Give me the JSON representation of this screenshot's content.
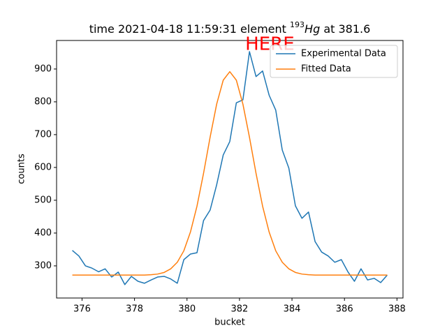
{
  "chart_data": {
    "type": "line",
    "title": {
      "prefix": "time 2021-04-18 11:59:31 element",
      "mass": "193",
      "element": "Hg",
      "suffix": "at 381.6"
    },
    "annotation": "HERE",
    "xlabel": "bucket",
    "ylabel": "counts",
    "x": [
      375.63,
      375.88,
      376.13,
      376.38,
      376.63,
      376.88,
      377.13,
      377.38,
      377.63,
      377.88,
      378.13,
      378.38,
      378.63,
      378.88,
      379.13,
      379.38,
      379.63,
      379.88,
      380.13,
      380.38,
      380.63,
      380.88,
      381.13,
      381.38,
      381.63,
      381.88,
      382.13,
      382.38,
      382.63,
      382.88,
      383.13,
      383.38,
      383.63,
      383.88,
      384.13,
      384.38,
      384.63,
      384.88,
      385.13,
      385.38,
      385.63,
      385.88,
      386.13,
      386.38,
      386.63,
      386.88,
      387.13,
      387.38,
      387.63
    ],
    "series": [
      {
        "name": "Experimental Data",
        "color": "#1f77b4",
        "values": [
          347,
          330,
          300,
          293,
          282,
          291,
          266,
          281,
          243,
          268,
          253,
          247,
          257,
          266,
          268,
          260,
          247,
          319,
          336,
          340,
          438,
          470,
          547,
          638,
          679,
          797,
          806,
          953,
          877,
          894,
          820,
          775,
          653,
          598,
          483,
          445,
          464,
          374,
          342,
          330,
          311,
          319,
          282,
          253,
          291,
          257,
          262,
          249,
          272
        ]
      },
      {
        "name": "Fitted Data",
        "color": "#ff7f0e",
        "values": [
          272,
          272,
          272,
          272,
          272,
          272,
          272,
          272,
          272,
          272,
          272,
          272,
          273,
          275,
          280,
          291,
          311,
          346,
          403,
          482,
          582,
          692,
          793,
          866,
          892,
          866,
          793,
          692,
          582,
          482,
          403,
          346,
          311,
          291,
          280,
          275,
          273,
          272,
          272,
          272,
          272,
          272,
          272,
          272,
          272,
          272,
          272,
          272,
          272
        ]
      }
    ],
    "xlim": [
      375.03,
      388.23
    ],
    "ylim": [
      202,
      987
    ],
    "xticks": [
      376,
      378,
      380,
      382,
      384,
      386,
      388
    ],
    "yticks": [
      300,
      400,
      500,
      600,
      700,
      800,
      900
    ],
    "grid": false,
    "legend": "upper right"
  }
}
